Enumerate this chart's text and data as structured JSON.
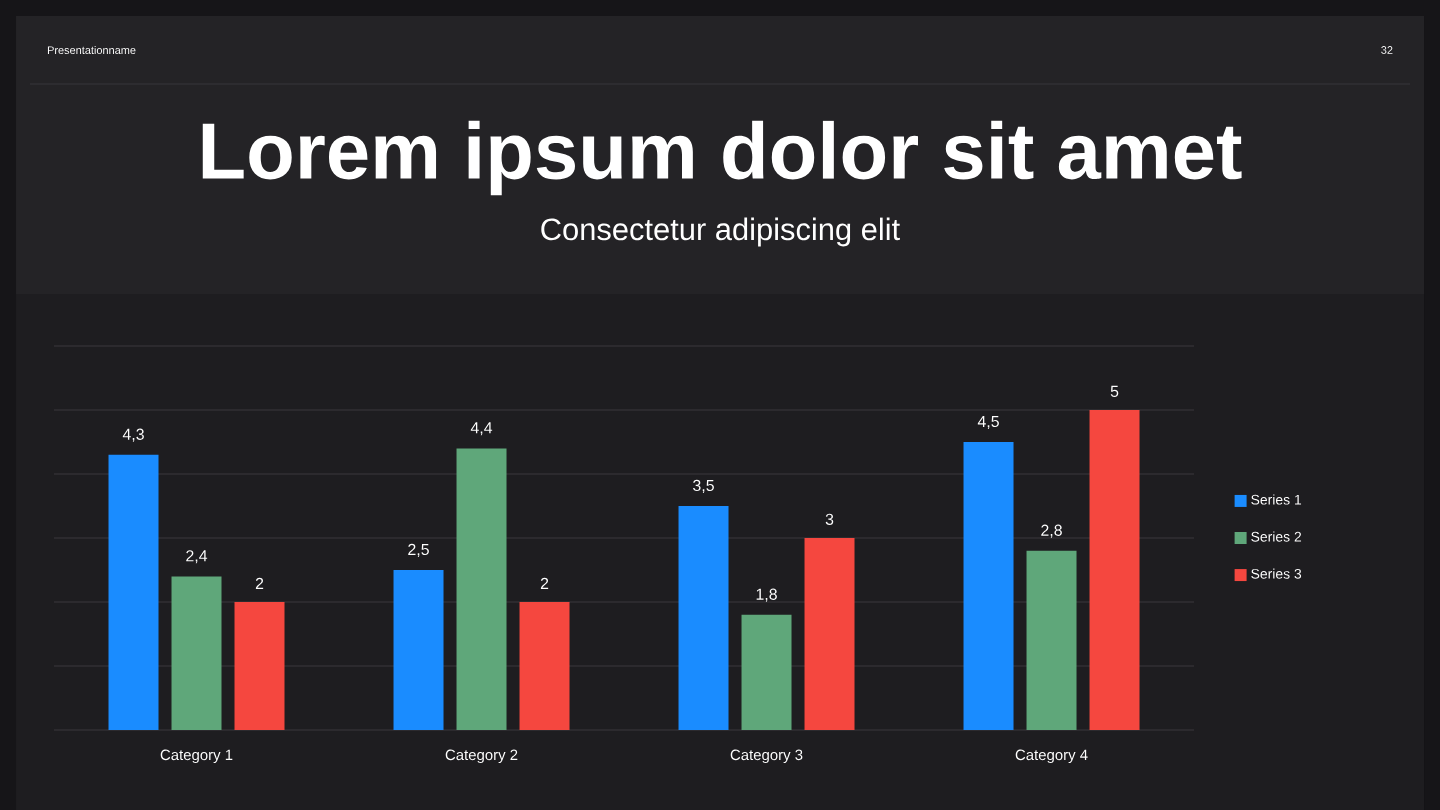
{
  "chart_data": {
    "type": "bar",
    "title": "Lorem ipsum dolor sit amet",
    "subtitle": "Consectetur adipiscing elit",
    "annotations": [
      "Presentationname",
      "32"
    ],
    "categories": [
      "Category 1",
      "Category 2",
      "Category 3",
      "Category 4"
    ],
    "series": [
      {
        "name": "Series 1",
        "color": "#1a8cff",
        "values": [
          4.3,
          2.5,
          3.5,
          4.5
        ],
        "value_labels": [
          "4,3",
          "2,5",
          "3,5",
          "4,5"
        ]
      },
      {
        "name": "Series 2",
        "color": "#5fa77a",
        "values": [
          2.4,
          4.4,
          1.8,
          2.8
        ],
        "value_labels": [
          "2,4",
          "4,4",
          "1,8",
          "2,8"
        ]
      },
      {
        "name": "Series 3",
        "color": "#f5473f",
        "values": [
          2,
          2,
          3,
          5
        ],
        "value_labels": [
          "2",
          "2",
          "3",
          "5"
        ]
      }
    ],
    "ylim": [
      0,
      6
    ],
    "yticks": [
      {
        "value": 0,
        "label": null
      },
      {
        "value": 1,
        "label": null
      },
      {
        "value": 2,
        "label": null
      },
      {
        "value": 3,
        "label": null
      },
      {
        "value": 4,
        "label": null
      },
      {
        "value": 5,
        "label": null
      },
      {
        "value": 6,
        "label": null
      }
    ],
    "tick_labels": "x",
    "grid": "y",
    "legend": "right"
  }
}
